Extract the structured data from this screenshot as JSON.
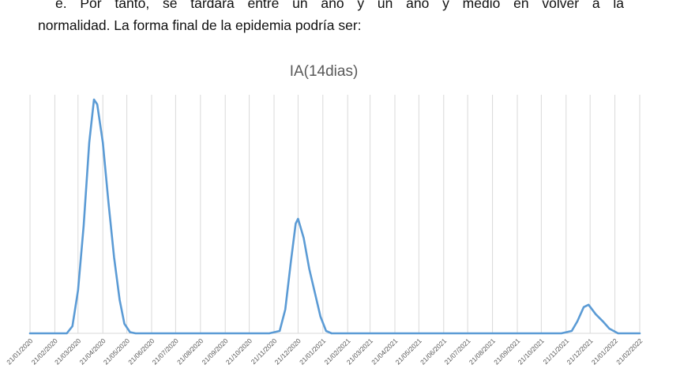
{
  "document": {
    "line1": "e. Por tanto, se tardará entre un año y un año y medio en volver a la",
    "line2": "normalidad. La forma final de la epidemia podría ser:"
  },
  "chart_data": {
    "type": "line",
    "title": "IA(14dias)",
    "xlabel": "",
    "ylabel": "",
    "x_ticks": [
      "21/01/2020",
      "21/02/2020",
      "21/03/2020",
      "21/04/2020",
      "21/05/2020",
      "21/06/2020",
      "21/07/2020",
      "21/08/2020",
      "21/09/2020",
      "21/10/2020",
      "21/11/2020",
      "21/12/2020",
      "21/01/2021",
      "21/02/2021",
      "21/03/2021",
      "21/04/2021",
      "21/05/2021",
      "21/06/2021",
      "21/07/2021",
      "21/08/2021",
      "21/09/2021",
      "21/10/2021",
      "21/11/2021",
      "21/12/2021",
      "21/01/2022",
      "21/02/2022"
    ],
    "xlim": [
      "21/01/2020",
      "21/02/2022"
    ],
    "ylim": [
      0,
      100
    ],
    "y_axis_labels_shown": false,
    "grid": "vertical",
    "legend": "none",
    "line_color": "#5B9BD5",
    "series": [
      {
        "points": [
          [
            "21/01/2020",
            0
          ],
          [
            "07/03/2020",
            0
          ],
          [
            "14/03/2020",
            3
          ],
          [
            "21/03/2020",
            18
          ],
          [
            "28/03/2020",
            45
          ],
          [
            "04/04/2020",
            80
          ],
          [
            "10/04/2020",
            98
          ],
          [
            "14/04/2020",
            96
          ],
          [
            "21/04/2020",
            80
          ],
          [
            "28/04/2020",
            55
          ],
          [
            "05/05/2020",
            32
          ],
          [
            "12/05/2020",
            14
          ],
          [
            "18/05/2020",
            4
          ],
          [
            "25/05/2020",
            0.5
          ],
          [
            "01/06/2020",
            0
          ],
          [
            "15/11/2020",
            0
          ],
          [
            "28/11/2020",
            1
          ],
          [
            "05/12/2020",
            10
          ],
          [
            "12/12/2020",
            30
          ],
          [
            "18/12/2020",
            46
          ],
          [
            "21/12/2020",
            48
          ],
          [
            "28/12/2020",
            40
          ],
          [
            "04/01/2021",
            27
          ],
          [
            "11/01/2021",
            17
          ],
          [
            "18/01/2021",
            7
          ],
          [
            "25/01/2021",
            1
          ],
          [
            "01/02/2021",
            0
          ],
          [
            "21/02/2021",
            0
          ],
          [
            "15/11/2021",
            0
          ],
          [
            "28/11/2021",
            1
          ],
          [
            "05/12/2021",
            5
          ],
          [
            "13/12/2021",
            11
          ],
          [
            "19/12/2021",
            12
          ],
          [
            "28/12/2021",
            8
          ],
          [
            "06/01/2022",
            5
          ],
          [
            "14/01/2022",
            2
          ],
          [
            "25/01/2022",
            0
          ],
          [
            "21/02/2022",
            0
          ]
        ]
      }
    ]
  }
}
